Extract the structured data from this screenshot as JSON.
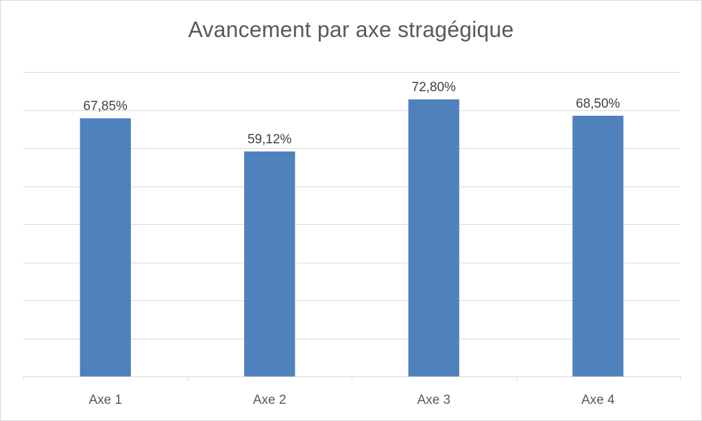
{
  "chart_data": {
    "type": "bar",
    "title": "Avancement par axe stragégique",
    "categories": [
      "Axe 1",
      "Axe 2",
      "Axe 3",
      "Axe 4"
    ],
    "values": [
      67.85,
      59.12,
      72.8,
      68.5
    ],
    "data_labels": [
      "67,85%",
      "59,12%",
      "72,80%",
      "68,50%"
    ],
    "xlabel": "",
    "ylabel": "",
    "ylim": [
      0,
      80
    ],
    "y_gridline_step": 10,
    "grid": true,
    "y_axis_visible": false,
    "legend": "none",
    "bar_color": "#4f81bd",
    "gridline_color": "#d9d9d9"
  }
}
